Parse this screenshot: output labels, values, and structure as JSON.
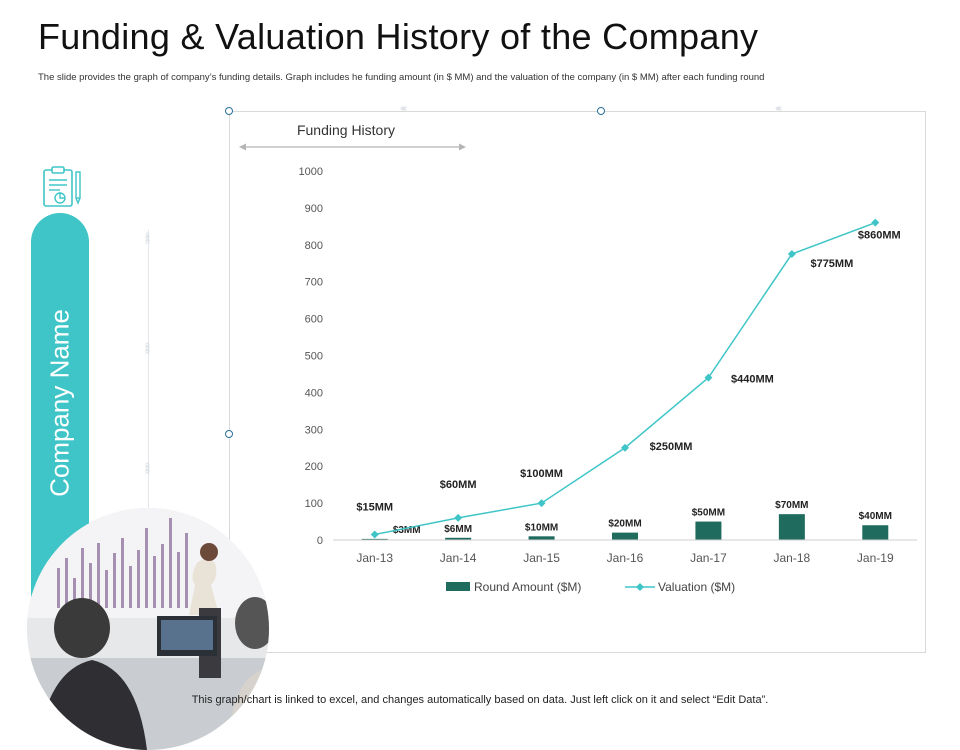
{
  "slide": {
    "title": "Funding & Valuation History of the Company",
    "subtitle": "The slide provides the graph of company’s funding details. Graph includes he funding amount (in $ MM) and the valuation of the company (in $ MM) after each funding round",
    "company_name": "Company Name",
    "footer": "This graph/chart is linked to excel, and changes automatically based on data. Just left click on it and select “Edit Data”."
  },
  "colors": {
    "accent": "#3fc5c7",
    "bar": "#1f6b5e",
    "line": "#3fc5c7"
  },
  "chart_data": {
    "type": "bar+line",
    "title": "Funding History",
    "categories": [
      "Jan-13",
      "Jan-14",
      "Jan-15",
      "Jan-16",
      "Jan-17",
      "Jan-18",
      "Jan-19"
    ],
    "ylim": [
      0,
      1000
    ],
    "yticks": [
      0,
      100,
      200,
      300,
      400,
      500,
      600,
      700,
      800,
      900,
      1000
    ],
    "series": [
      {
        "name": "Round Amount ($M)",
        "kind": "bar",
        "values": [
          3,
          6,
          10,
          20,
          50,
          70,
          40
        ],
        "labels": [
          "$3MM",
          "$6MM",
          "$10MM",
          "$20MM",
          "$50MM",
          "$70MM",
          "$40MM"
        ]
      },
      {
        "name": "Valuation ($M)",
        "kind": "line",
        "values": [
          15,
          60,
          100,
          250,
          440,
          775,
          860
        ],
        "labels": [
          "$15MM",
          "$60MM",
          "$100MM",
          "$250MM",
          "$440MM",
          "$775MM",
          "$860MM"
        ]
      }
    ],
    "legend": "bottom"
  }
}
